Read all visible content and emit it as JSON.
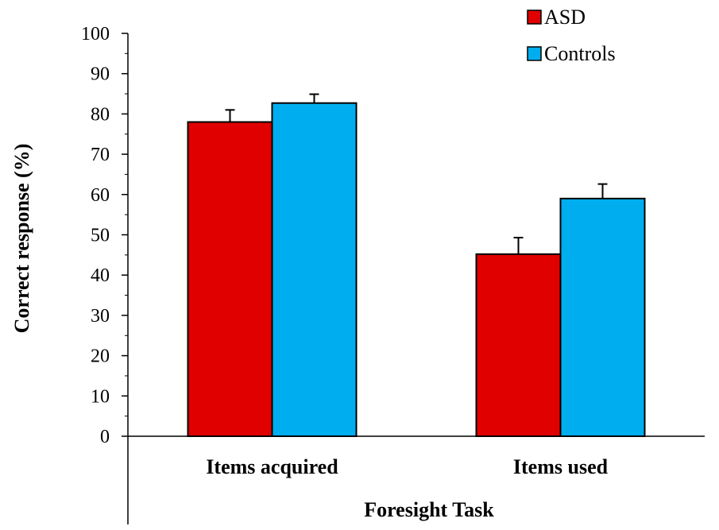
{
  "chart_data": {
    "type": "bar",
    "categories": [
      "Items acquired",
      "Items used"
    ],
    "series": [
      {
        "name": "ASD",
        "values": [
          78,
          45.2
        ],
        "errors": [
          3,
          4.1
        ],
        "color": "#e00000"
      },
      {
        "name": "Controls",
        "values": [
          82.7,
          59
        ],
        "errors": [
          2.2,
          3.6
        ],
        "color": "#00aeef"
      }
    ],
    "xlabel": "Foresight Task",
    "ylabel": "Correct response (%)",
    "ylim": [
      0,
      100
    ],
    "yticks": [
      0,
      10,
      20,
      30,
      40,
      50,
      60,
      70,
      80,
      90,
      100
    ],
    "grid": false,
    "legend_position": "top-right"
  }
}
